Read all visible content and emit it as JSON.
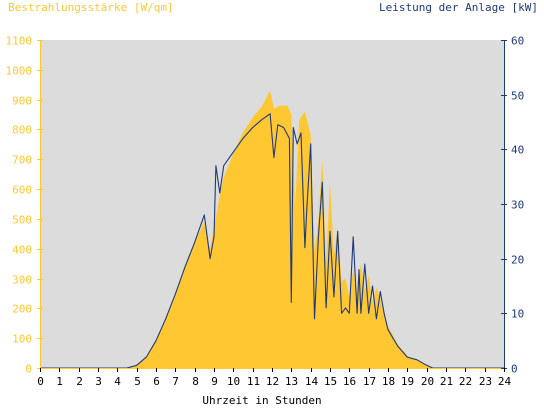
{
  "chart_data": {
    "type": "area",
    "left_axis_label": "Bestrahlungsstärke [W/qm]",
    "right_axis_label": "Leistung der Anlage [kW]",
    "xlabel": "Uhrzeit in Stunden",
    "xlim": [
      0,
      24
    ],
    "ylim_left": [
      0,
      1100
    ],
    "ylim_right": [
      0,
      60
    ],
    "x_ticks": [
      "0",
      "1",
      "2",
      "3",
      "4",
      "5",
      "6",
      "7",
      "8",
      "9",
      "10",
      "11",
      "12",
      "13",
      "14",
      "15",
      "16",
      "17",
      "18",
      "19",
      "20",
      "21",
      "22",
      "23",
      "24"
    ],
    "y_left_ticks": [
      "0",
      "100",
      "200",
      "300",
      "400",
      "500",
      "600",
      "700",
      "800",
      "900",
      "1000",
      "1100"
    ],
    "y_right_ticks": [
      "0",
      "10",
      "20",
      "30",
      "40",
      "50",
      "60"
    ],
    "grid": false,
    "colors": {
      "plot_background": "#DCDCDC",
      "irradiance": "#FFC832",
      "power": "#1F3A7A",
      "left_axis": "#FFC832",
      "right_axis": "#1F3A7A"
    },
    "series": [
      {
        "name": "Bestrahlungsstärke",
        "axis": "left",
        "x": [
          0,
          4.5,
          5.0,
          5.5,
          6.0,
          6.5,
          7.0,
          7.5,
          8.0,
          8.5,
          8.8,
          9.0,
          9.3,
          9.5,
          10.0,
          10.5,
          11.0,
          11.5,
          11.9,
          12.1,
          12.4,
          12.8,
          13.0,
          13.2,
          13.4,
          13.7,
          14.0,
          14.2,
          14.4,
          14.6,
          14.8,
          15.0,
          15.2,
          15.4,
          15.6,
          15.8,
          16.0,
          16.2,
          16.4,
          16.6,
          16.8,
          17.0,
          17.2,
          17.4,
          17.6,
          17.8,
          18.0,
          18.5,
          19.0,
          19.5,
          20.0,
          20.3,
          20.5,
          21,
          24
        ],
        "values": [
          0,
          0,
          8,
          35,
          90,
          170,
          250,
          340,
          420,
          490,
          400,
          470,
          580,
          640,
          720,
          790,
          840,
          880,
          930,
          870,
          880,
          880,
          850,
          540,
          830,
          860,
          780,
          390,
          500,
          700,
          350,
          620,
          380,
          470,
          290,
          300,
          240,
          330,
          250,
          350,
          260,
          310,
          220,
          270,
          230,
          180,
          140,
          80,
          40,
          25,
          10,
          3,
          0,
          0,
          0
        ]
      },
      {
        "name": "Leistung der Anlage",
        "axis": "right",
        "x": [
          0,
          4.5,
          5.0,
          5.5,
          6.0,
          6.5,
          7.0,
          7.5,
          8.0,
          8.5,
          8.8,
          9.0,
          9.1,
          9.3,
          9.5,
          10.0,
          10.5,
          11.0,
          11.5,
          11.9,
          12.1,
          12.3,
          12.6,
          12.9,
          13.0,
          13.1,
          13.3,
          13.5,
          13.7,
          13.8,
          14.0,
          14.2,
          14.4,
          14.6,
          14.8,
          15.0,
          15.2,
          15.4,
          15.6,
          15.8,
          16.0,
          16.2,
          16.4,
          16.5,
          16.6,
          16.8,
          17.0,
          17.2,
          17.4,
          17.6,
          17.8,
          18.0,
          18.5,
          19.0,
          19.5,
          20.0,
          20.3,
          20.5,
          21,
          24
        ],
        "values": [
          0,
          0,
          0.5,
          2,
          5,
          9,
          13.5,
          18.5,
          23,
          28,
          20,
          24,
          37,
          32,
          37,
          39.5,
          42,
          44,
          45.5,
          46.5,
          38.5,
          44.5,
          44,
          42,
          12,
          44,
          41,
          43,
          22,
          29,
          41,
          9,
          24,
          34,
          11,
          25,
          13,
          25,
          10,
          11,
          10,
          24,
          10,
          18,
          10,
          19,
          10,
          15,
          9,
          14,
          10,
          7,
          4,
          2,
          1.5,
          0.5,
          0,
          0,
          0,
          0
        ]
      }
    ]
  }
}
